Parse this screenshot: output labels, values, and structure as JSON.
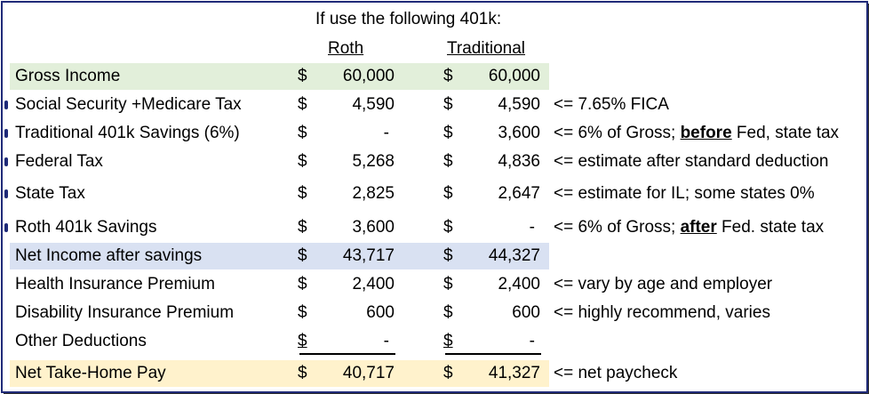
{
  "header": {
    "title": "If use the following 401k:",
    "col_roth": "Roth",
    "col_traditional": "Traditional"
  },
  "colors": {
    "green_band": "#e2efda",
    "blue_band": "#d9e1f2",
    "tan_band": "#fff2cc",
    "frame": "#1f2a78"
  },
  "rows": [
    {
      "label": "Gross Income",
      "cur1": "$",
      "roth": "60,000",
      "cur2": "$",
      "trad": "60,000",
      "note": ""
    },
    {
      "label": "Social Security +Medicare Tax",
      "cur1": "$",
      "roth": "4,590",
      "cur2": "$",
      "trad": "4,590",
      "note": "<= 7.65% FICA"
    },
    {
      "label": "Traditional 401k Savings (6%)",
      "cur1": "$",
      "roth": "-",
      "cur2": "$",
      "trad": "3,600",
      "note_pre": "<= 6% of Gross; ",
      "note_bold": "before",
      "note_post": " Fed, state tax"
    },
    {
      "label": "Federal Tax",
      "cur1": "$",
      "roth": "5,268",
      "cur2": "$",
      "trad": "4,836",
      "note": "<= estimate after standard deduction"
    },
    {
      "label": "State Tax",
      "cur1": "$",
      "roth": "2,825",
      "cur2": "$",
      "trad": "2,647",
      "note": "<= estimate for IL; some states 0%"
    },
    {
      "label": "Roth 401k Savings",
      "cur1": "$",
      "roth": "3,600",
      "cur2": "$",
      "trad": "-",
      "note_pre": "<= 6% of Gross; ",
      "note_bold": "after",
      "note_post": " Fed. state tax"
    },
    {
      "label": "Net Income after savings",
      "cur1": "$",
      "roth": "43,717",
      "cur2": "$",
      "trad": "44,327",
      "note": ""
    },
    {
      "label": "Health Insurance Premium",
      "cur1": "$",
      "roth": "2,400",
      "cur2": "$",
      "trad": "2,400",
      "note": "<= vary by age and employer"
    },
    {
      "label": "Disability Insurance Premium",
      "cur1": "$",
      "roth": "600",
      "cur2": "$",
      "trad": "600",
      "note": "<= highly recommend, varies"
    },
    {
      "label": "Other Deductions",
      "cur1": "$",
      "roth": "-",
      "cur2": "$",
      "trad": "-",
      "note": ""
    },
    {
      "label": "Net Take-Home Pay",
      "cur1": "$",
      "roth": "40,717",
      "cur2": "$",
      "trad": "41,327",
      "note": "<= net paycheck"
    }
  ]
}
